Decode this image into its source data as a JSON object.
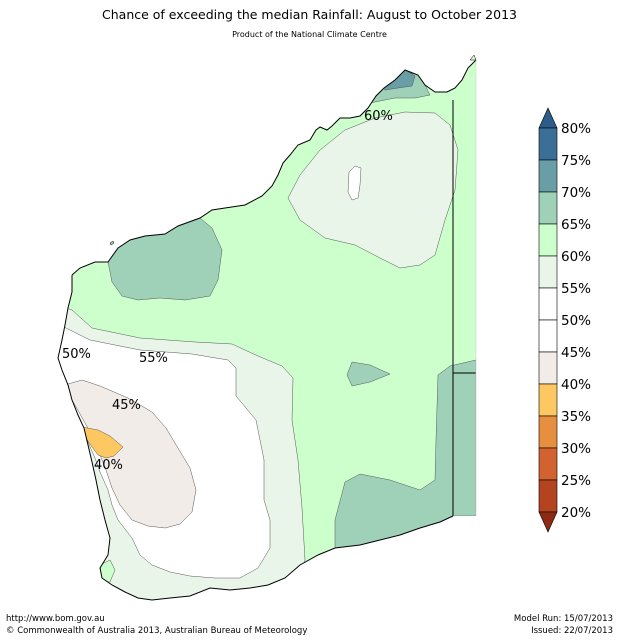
{
  "title": "Chance of exceeding the median Rainfall: August to October 2013",
  "subtitle": "Product of the National Climate Centre",
  "contour_labels": [
    "60%",
    "50%",
    "55%",
    "45%",
    "40%"
  ],
  "colorbar": {
    "labels": [
      "80%",
      "75%",
      "70%",
      "65%",
      "60%",
      "55%",
      "50%",
      "45%",
      "40%",
      "35%",
      "30%",
      "25%",
      "20%"
    ],
    "colors": {
      "75_80": "#3b6f98",
      "70_75": "#6a9ea6",
      "65_70": "#9fd1b8",
      "60_65": "#ccffcc",
      "55_60": "#e8f5e8",
      "50_55": "#ffffff",
      "45_50": "#ffffff",
      "40_45": "#f1ece7",
      "35_40": "#fdc862",
      "30_35": "#e58f3f",
      "25_30": "#d2622f",
      "20_25": "#b3441f",
      "extend_high": "#2b5c8a",
      "extend_low": "#8e2a12"
    }
  },
  "footer": {
    "url": "http://www.bom.gov.au",
    "copyright": "©  Commonwealth of Australia 2013, Australian Bureau of Meteorology",
    "model_run": "Model Run: 15/07/2013",
    "issued": "Issued: 22/07/2013"
  }
}
